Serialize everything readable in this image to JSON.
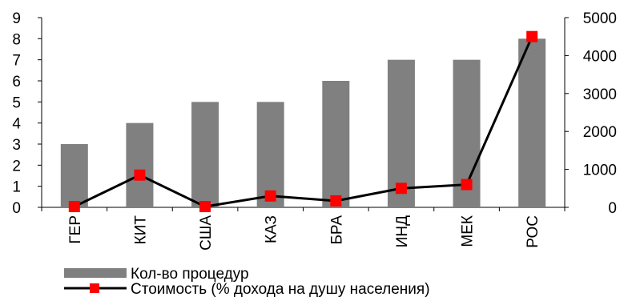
{
  "chart_data": {
    "type": "bar",
    "categories": [
      "ГЕР",
      "КИТ",
      "США",
      "КАЗ",
      "БРА",
      "ИНД",
      "МЕК",
      "РОС"
    ],
    "series": [
      {
        "name": "Кол-во процедур",
        "type": "bar",
        "axis": "left",
        "values": [
          3,
          4,
          5,
          5,
          6,
          7,
          7,
          8
        ],
        "color": "#808080"
      },
      {
        "name": "Стоимость (% дохода на душу населения)",
        "type": "line",
        "axis": "right",
        "values": [
          20,
          850,
          20,
          300,
          170,
          500,
          600,
          4500
        ],
        "color": "#000000",
        "marker_color": "#ff0000"
      }
    ],
    "left_axis": {
      "ylim": [
        0,
        9
      ],
      "ticks": [
        "0",
        "1",
        "2",
        "3",
        "4",
        "5",
        "6",
        "7",
        "8",
        "9"
      ]
    },
    "right_axis": {
      "ylim": [
        0,
        5000
      ],
      "ticks": [
        "0",
        "1000",
        "2000",
        "3000",
        "4000",
        "5000"
      ]
    },
    "grid": false,
    "legend_position": "bottom-left"
  }
}
